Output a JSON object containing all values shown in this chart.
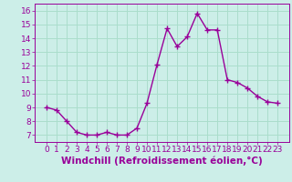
{
  "hours": [
    0,
    1,
    2,
    3,
    4,
    5,
    6,
    7,
    8,
    9,
    10,
    11,
    12,
    13,
    14,
    15,
    16,
    17,
    18,
    19,
    20,
    21,
    22,
    23
  ],
  "values": [
    9.0,
    8.8,
    8.0,
    7.2,
    7.0,
    7.0,
    7.2,
    7.0,
    7.0,
    7.5,
    9.3,
    12.1,
    14.7,
    13.4,
    14.1,
    15.8,
    14.6,
    14.6,
    11.0,
    10.8,
    10.4,
    9.8,
    9.4,
    9.3
  ],
  "line_color": "#990099",
  "marker": "+",
  "marker_size": 4,
  "bg_color": "#cceee8",
  "grid_color": "#aaddcc",
  "xlabel": "Windchill (Refroidissement éolien,°C)",
  "xlabel_fontsize": 7.5,
  "ylim": [
    6.5,
    16.5
  ],
  "yticks": [
    7,
    8,
    9,
    10,
    11,
    12,
    13,
    14,
    15,
    16
  ],
  "xticks": [
    0,
    1,
    2,
    3,
    4,
    5,
    6,
    7,
    8,
    9,
    10,
    11,
    12,
    13,
    14,
    15,
    16,
    17,
    18,
    19,
    20,
    21,
    22,
    23
  ],
  "tick_fontsize": 6.5,
  "line_width": 1.0
}
